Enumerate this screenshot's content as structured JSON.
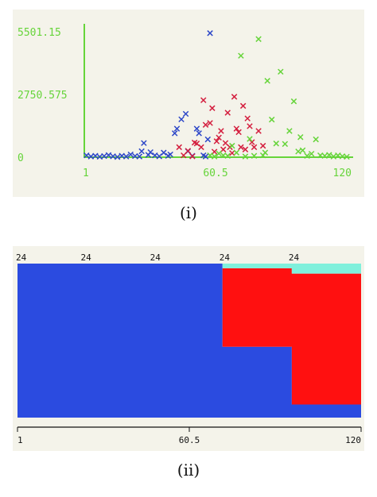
{
  "captions": {
    "panel_i": "(i)",
    "panel_ii": "(ii)"
  },
  "colors": {
    "series_blue": "#2d47c8",
    "series_red": "#d41f3f",
    "series_green": "#66d43a",
    "axis_green": "#66d43a",
    "fill_blue": "#2b4be0",
    "fill_red": "#ff1010",
    "fill_cyan": "#80f0dc"
  },
  "chart_data": [
    {
      "type": "scatter",
      "title": "",
      "xlabel": "",
      "ylabel": "",
      "xlim": [
        1,
        120
      ],
      "ylim": [
        0,
        5501.15
      ],
      "x_ticks": [
        "1",
        "60.5",
        "120"
      ],
      "y_ticks": [
        "5501.15",
        "2750.575",
        "0"
      ],
      "marker": "x",
      "series": [
        {
          "color": "#2d47c8",
          "points": [
            [
              2,
              80
            ],
            [
              4,
              30
            ],
            [
              6,
              60
            ],
            [
              8,
              20
            ],
            [
              10,
              50
            ],
            [
              12,
              90
            ],
            [
              14,
              40
            ],
            [
              16,
              10
            ],
            [
              18,
              60
            ],
            [
              20,
              30
            ],
            [
              22,
              120
            ],
            [
              24,
              50
            ],
            [
              26,
              30
            ],
            [
              27,
              260
            ],
            [
              28,
              620
            ],
            [
              30,
              100
            ],
            [
              31,
              220
            ],
            [
              33,
              80
            ],
            [
              35,
              40
            ],
            [
              37,
              200
            ],
            [
              39,
              60
            ],
            [
              40,
              120
            ],
            [
              42,
              1050
            ],
            [
              43,
              1250
            ],
            [
              45,
              1660
            ],
            [
              47,
              1900
            ],
            [
              48,
              260
            ],
            [
              50,
              60
            ],
            [
              52,
              1250
            ],
            [
              53,
              1050
            ],
            [
              55,
              80
            ],
            [
              56,
              30
            ],
            [
              57,
              780
            ],
            [
              58,
              5440
            ]
          ]
        },
        {
          "color": "#d41f3f",
          "points": [
            [
              44,
              440
            ],
            [
              46,
              80
            ],
            [
              48,
              280
            ],
            [
              50,
              40
            ],
            [
              51,
              640
            ],
            [
              52,
              600
            ],
            [
              54,
              440
            ],
            [
              55,
              2500
            ],
            [
              56,
              1420
            ],
            [
              58,
              1500
            ],
            [
              59,
              2150
            ],
            [
              60,
              240
            ],
            [
              61,
              700
            ],
            [
              62,
              860
            ],
            [
              63,
              1150
            ],
            [
              64,
              340
            ],
            [
              65,
              620
            ],
            [
              66,
              1950
            ],
            [
              67,
              440
            ],
            [
              68,
              180
            ],
            [
              69,
              2650
            ],
            [
              70,
              1250
            ],
            [
              71,
              1100
            ],
            [
              72,
              440
            ],
            [
              73,
              2250
            ],
            [
              74,
              340
            ],
            [
              75,
              1700
            ],
            [
              76,
              1360
            ],
            [
              77,
              660
            ],
            [
              78,
              440
            ],
            [
              80,
              1150
            ],
            [
              82,
              500
            ]
          ]
        },
        {
          "color": "#66d43a",
          "points": [
            [
              58,
              80
            ],
            [
              60,
              30
            ],
            [
              62,
              160
            ],
            [
              64,
              80
            ],
            [
              66,
              60
            ],
            [
              68,
              500
            ],
            [
              70,
              200
            ],
            [
              72,
              4450
            ],
            [
              74,
              30
            ],
            [
              76,
              800
            ],
            [
              78,
              60
            ],
            [
              80,
              5180
            ],
            [
              82,
              80
            ],
            [
              83,
              200
            ],
            [
              84,
              3350
            ],
            [
              86,
              1650
            ],
            [
              88,
              600
            ],
            [
              90,
              3750
            ],
            [
              92,
              580
            ],
            [
              94,
              1150
            ],
            [
              96,
              2450
            ],
            [
              98,
              250
            ],
            [
              99,
              880
            ],
            [
              100,
              300
            ],
            [
              102,
              60
            ],
            [
              104,
              150
            ],
            [
              106,
              780
            ],
            [
              108,
              80
            ],
            [
              110,
              60
            ],
            [
              112,
              100
            ],
            [
              114,
              30
            ],
            [
              116,
              80
            ],
            [
              118,
              40
            ],
            [
              120,
              20
            ]
          ]
        }
      ]
    },
    {
      "type": "area",
      "title": "",
      "xlabel": "",
      "ylabel": "",
      "xlim": [
        1,
        120
      ],
      "ylim": [
        0,
        1
      ],
      "x_ticks": [
        "1",
        "60.5",
        "120"
      ],
      "top_labels": [
        {
          "x": 1,
          "text": "24"
        },
        {
          "x": 24,
          "text": "24"
        },
        {
          "x": 48,
          "text": "24"
        },
        {
          "x": 72,
          "text": "24"
        },
        {
          "x": 96,
          "text": "24"
        }
      ],
      "series": [
        {
          "color": "#2b4be0",
          "points": [
            [
              1,
              1
            ],
            [
              72,
              1
            ],
            [
              72,
              0.46
            ],
            [
              96,
              0.46
            ],
            [
              96,
              0.085
            ],
            [
              120,
              0.085
            ]
          ]
        },
        {
          "color": "#ff1010",
          "points": [
            [
              1,
              0
            ],
            [
              72,
              0
            ],
            [
              72,
              0.97
            ],
            [
              96,
              0.97
            ],
            [
              96,
              0.935
            ],
            [
              120,
              0.935
            ]
          ]
        },
        {
          "color": "#80f0dc",
          "points": [
            [
              1,
              0
            ],
            [
              72,
              0
            ],
            [
              72,
              0.03
            ],
            [
              96,
              0.03
            ],
            [
              96,
              0.065
            ],
            [
              120,
              0.065
            ]
          ]
        }
      ]
    }
  ]
}
